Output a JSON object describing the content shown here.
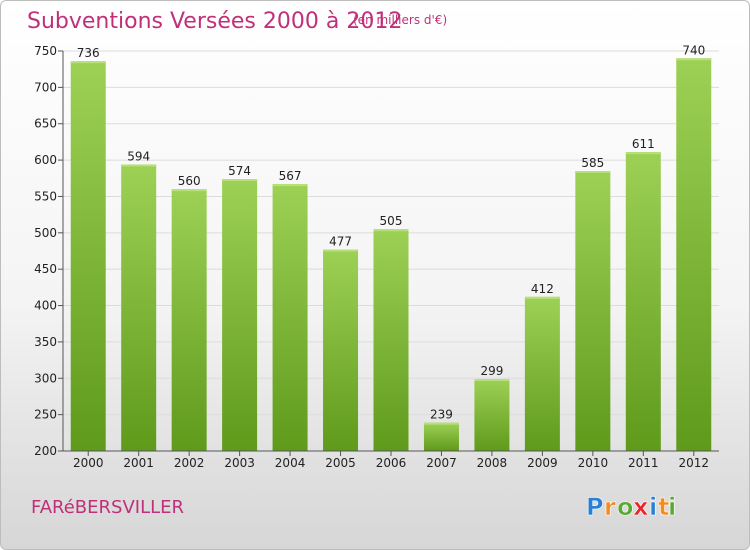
{
  "header": {
    "title": "Subventions Versées 2000 à 2012",
    "subtitle": "(en milliers d'€)"
  },
  "footer": {
    "commune": "FARéBERSVILLER",
    "logo_text": "Proxiti",
    "logo_letters": [
      "P",
      "r",
      "o",
      "x",
      "i",
      "t",
      "i"
    ],
    "logo_colors": [
      "#2a7fd4",
      "#f28c1e",
      "#59a832",
      "#e8262c",
      "#2a7fd4",
      "#f28c1e",
      "#59a832"
    ]
  },
  "chart_data": {
    "type": "bar",
    "title": "Subventions Versées 2000 à 2012",
    "subtitle": "(en milliers d'€)",
    "xlabel": "",
    "ylabel": "",
    "categories": [
      "2000",
      "2001",
      "2002",
      "2003",
      "2004",
      "2005",
      "2006",
      "2007",
      "2008",
      "2009",
      "2010",
      "2011",
      "2012"
    ],
    "values": [
      736,
      594,
      560,
      574,
      567,
      477,
      505,
      239,
      299,
      412,
      585,
      611,
      740
    ],
    "ylim": [
      200,
      750
    ],
    "yticks": [
      200,
      250,
      300,
      350,
      400,
      450,
      500,
      550,
      600,
      650,
      700,
      750
    ],
    "grid": true,
    "legend": "none",
    "bar_color_top": "#9dd155",
    "bar_color_bottom": "#5f9a1b",
    "grid_color": "#dcdcdc",
    "axis_color": "#555555"
  }
}
